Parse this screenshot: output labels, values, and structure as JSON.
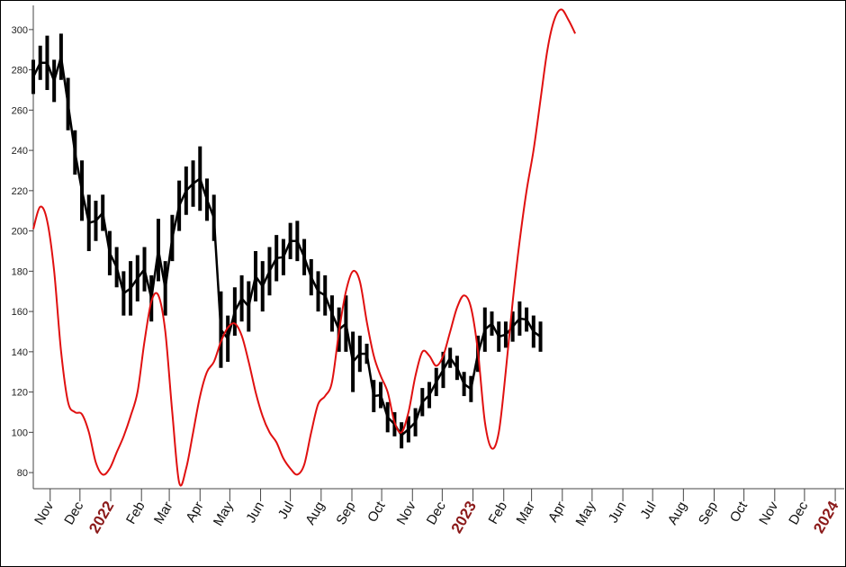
{
  "chart_data": {
    "type": "line",
    "title": "",
    "xlabel": "",
    "ylabel": "",
    "ylim": [
      72,
      312
    ],
    "y_ticks": [
      80,
      100,
      120,
      140,
      160,
      180,
      200,
      220,
      240,
      260,
      280,
      300
    ],
    "x_axis": {
      "start": "2021-10-15",
      "end": "2024-01-10",
      "month_labels": [
        {
          "date": "2021-11-01",
          "label": "Nov"
        },
        {
          "date": "2021-12-01",
          "label": "Dec"
        },
        {
          "date": "2022-01-01",
          "label": "2022",
          "year": true
        },
        {
          "date": "2022-02-01",
          "label": "Feb"
        },
        {
          "date": "2022-03-01",
          "label": "Mar"
        },
        {
          "date": "2022-04-01",
          "label": "Apr"
        },
        {
          "date": "2022-05-01",
          "label": "May"
        },
        {
          "date": "2022-06-01",
          "label": "Jun"
        },
        {
          "date": "2022-07-01",
          "label": "Jul"
        },
        {
          "date": "2022-08-01",
          "label": "Aug"
        },
        {
          "date": "2022-09-01",
          "label": "Sep"
        },
        {
          "date": "2022-10-01",
          "label": "Oct"
        },
        {
          "date": "2022-11-01",
          "label": "Nov"
        },
        {
          "date": "2022-12-01",
          "label": "Dec"
        },
        {
          "date": "2023-01-01",
          "label": "2023",
          "year": true
        },
        {
          "date": "2023-02-01",
          "label": "Feb"
        },
        {
          "date": "2023-03-01",
          "label": "Mar"
        },
        {
          "date": "2023-04-01",
          "label": "Apr"
        },
        {
          "date": "2023-05-01",
          "label": "May"
        },
        {
          "date": "2023-06-01",
          "label": "Jun"
        },
        {
          "date": "2023-07-01",
          "label": "Jul"
        },
        {
          "date": "2023-08-01",
          "label": "Aug"
        },
        {
          "date": "2023-09-01",
          "label": "Sep"
        },
        {
          "date": "2023-10-01",
          "label": "Oct"
        },
        {
          "date": "2023-11-01",
          "label": "Nov"
        },
        {
          "date": "2023-12-01",
          "label": "Dec"
        },
        {
          "date": "2024-01-01",
          "label": "2024",
          "year": true
        }
      ]
    },
    "grid": false,
    "series": [
      {
        "color": "#000000",
        "style": "bar-range",
        "points": [
          [
            "2021-10-15",
            268,
            285
          ],
          [
            "2021-10-22",
            275,
            292
          ],
          [
            "2021-10-29",
            270,
            297
          ],
          [
            "2021-11-05",
            264,
            285
          ],
          [
            "2021-11-12",
            275,
            298
          ],
          [
            "2021-11-19",
            250,
            276
          ],
          [
            "2021-11-26",
            228,
            250
          ],
          [
            "2021-12-03",
            205,
            235
          ],
          [
            "2021-12-10",
            190,
            218
          ],
          [
            "2021-12-17",
            195,
            215
          ],
          [
            "2021-12-24",
            200,
            218
          ],
          [
            "2021-12-31",
            178,
            200
          ],
          [
            "2022-01-07",
            172,
            192
          ],
          [
            "2022-01-14",
            158,
            180
          ],
          [
            "2022-01-21",
            158,
            185
          ],
          [
            "2022-01-28",
            165,
            188
          ],
          [
            "2022-02-04",
            170,
            192
          ],
          [
            "2022-02-11",
            155,
            178
          ],
          [
            "2022-02-18",
            175,
            206
          ],
          [
            "2022-02-25",
            158,
            185
          ],
          [
            "2022-03-04",
            185,
            208
          ],
          [
            "2022-03-11",
            200,
            225
          ],
          [
            "2022-03-18",
            208,
            232
          ],
          [
            "2022-03-25",
            212,
            235
          ],
          [
            "2022-04-01",
            210,
            242
          ],
          [
            "2022-04-08",
            205,
            226
          ],
          [
            "2022-04-15",
            195,
            218
          ],
          [
            "2022-04-22",
            132,
            170
          ],
          [
            "2022-04-29",
            135,
            158
          ],
          [
            "2022-05-06",
            148,
            172
          ],
          [
            "2022-05-13",
            155,
            178
          ],
          [
            "2022-05-20",
            150,
            175
          ],
          [
            "2022-05-27",
            165,
            190
          ],
          [
            "2022-06-03",
            160,
            185
          ],
          [
            "2022-06-10",
            168,
            192
          ],
          [
            "2022-06-17",
            175,
            198
          ],
          [
            "2022-06-24",
            178,
            196
          ],
          [
            "2022-07-01",
            186,
            204
          ],
          [
            "2022-07-08",
            185,
            205
          ],
          [
            "2022-07-15",
            178,
            196
          ],
          [
            "2022-07-22",
            168,
            186
          ],
          [
            "2022-07-29",
            160,
            180
          ],
          [
            "2022-08-05",
            158,
            178
          ],
          [
            "2022-08-12",
            150,
            168
          ],
          [
            "2022-08-19",
            140,
            162
          ],
          [
            "2022-08-26",
            140,
            168
          ],
          [
            "2022-09-02",
            120,
            150
          ],
          [
            "2022-09-09",
            130,
            148
          ],
          [
            "2022-09-16",
            134,
            144
          ],
          [
            "2022-09-23",
            110,
            126
          ],
          [
            "2022-09-30",
            112,
            125
          ],
          [
            "2022-10-07",
            100,
            115
          ],
          [
            "2022-10-14",
            98,
            110
          ],
          [
            "2022-10-21",
            92,
            105
          ],
          [
            "2022-10-28",
            95,
            108
          ],
          [
            "2022-11-04",
            98,
            112
          ],
          [
            "2022-11-11",
            108,
            122
          ],
          [
            "2022-11-18",
            112,
            125
          ],
          [
            "2022-11-25",
            118,
            132
          ],
          [
            "2022-12-02",
            122,
            140
          ],
          [
            "2022-12-09",
            132,
            142
          ],
          [
            "2022-12-16",
            126,
            138
          ],
          [
            "2022-12-23",
            118,
            130
          ],
          [
            "2022-12-30",
            115,
            128
          ],
          [
            "2023-01-06",
            130,
            148
          ],
          [
            "2023-01-13",
            140,
            162
          ],
          [
            "2023-01-20",
            148,
            160
          ],
          [
            "2023-01-27",
            140,
            155
          ],
          [
            "2023-02-03",
            142,
            155
          ],
          [
            "2023-02-10",
            145,
            160
          ],
          [
            "2023-02-17",
            148,
            165
          ],
          [
            "2023-02-24",
            150,
            162
          ],
          [
            "2023-03-03",
            142,
            158
          ],
          [
            "2023-03-10",
            140,
            155
          ]
        ]
      },
      {
        "color": "#e01010",
        "style": "line",
        "points": [
          [
            "2021-10-15",
            201
          ],
          [
            "2021-10-22",
            212
          ],
          [
            "2021-10-29",
            205
          ],
          [
            "2021-11-05",
            180
          ],
          [
            "2021-11-12",
            140
          ],
          [
            "2021-11-19",
            115
          ],
          [
            "2021-11-26",
            110
          ],
          [
            "2021-12-03",
            109
          ],
          [
            "2021-12-10",
            100
          ],
          [
            "2021-12-17",
            85
          ],
          [
            "2021-12-24",
            79
          ],
          [
            "2021-12-31",
            82
          ],
          [
            "2022-01-07",
            90
          ],
          [
            "2022-01-14",
            98
          ],
          [
            "2022-01-21",
            108
          ],
          [
            "2022-01-28",
            120
          ],
          [
            "2022-02-04",
            145
          ],
          [
            "2022-02-11",
            165
          ],
          [
            "2022-02-18",
            168
          ],
          [
            "2022-02-25",
            150
          ],
          [
            "2022-03-04",
            110
          ],
          [
            "2022-03-11",
            75
          ],
          [
            "2022-03-18",
            82
          ],
          [
            "2022-03-25",
            100
          ],
          [
            "2022-04-01",
            118
          ],
          [
            "2022-04-08",
            130
          ],
          [
            "2022-04-15",
            135
          ],
          [
            "2022-04-22",
            145
          ],
          [
            "2022-04-29",
            152
          ],
          [
            "2022-05-06",
            154
          ],
          [
            "2022-05-13",
            148
          ],
          [
            "2022-05-20",
            135
          ],
          [
            "2022-05-27",
            120
          ],
          [
            "2022-06-03",
            108
          ],
          [
            "2022-06-10",
            100
          ],
          [
            "2022-06-17",
            95
          ],
          [
            "2022-06-24",
            87
          ],
          [
            "2022-07-01",
            82
          ],
          [
            "2022-07-08",
            79
          ],
          [
            "2022-07-15",
            84
          ],
          [
            "2022-07-22",
            100
          ],
          [
            "2022-07-29",
            114
          ],
          [
            "2022-08-05",
            118
          ],
          [
            "2022-08-12",
            125
          ],
          [
            "2022-08-19",
            150
          ],
          [
            "2022-08-26",
            170
          ],
          [
            "2022-09-02",
            180
          ],
          [
            "2022-09-09",
            175
          ],
          [
            "2022-09-16",
            155
          ],
          [
            "2022-09-23",
            138
          ],
          [
            "2022-09-30",
            128
          ],
          [
            "2022-10-07",
            120
          ],
          [
            "2022-10-14",
            105
          ],
          [
            "2022-10-21",
            100
          ],
          [
            "2022-10-28",
            110
          ],
          [
            "2022-11-04",
            128
          ],
          [
            "2022-11-11",
            140
          ],
          [
            "2022-11-18",
            138
          ],
          [
            "2022-11-25",
            133
          ],
          [
            "2022-12-02",
            138
          ],
          [
            "2022-12-09",
            150
          ],
          [
            "2022-12-16",
            162
          ],
          [
            "2022-12-23",
            168
          ],
          [
            "2022-12-30",
            162
          ],
          [
            "2023-01-06",
            140
          ],
          [
            "2023-01-13",
            105
          ],
          [
            "2023-01-20",
            92
          ],
          [
            "2023-01-27",
            100
          ],
          [
            "2023-02-03",
            130
          ],
          [
            "2023-02-10",
            165
          ],
          [
            "2023-02-17",
            195
          ],
          [
            "2023-02-24",
            220
          ],
          [
            "2023-03-03",
            240
          ],
          [
            "2023-03-10",
            265
          ],
          [
            "2023-03-17",
            290
          ],
          [
            "2023-03-24",
            305
          ],
          [
            "2023-03-31",
            310
          ],
          [
            "2023-04-07",
            305
          ],
          [
            "2023-04-14",
            298
          ]
        ]
      }
    ]
  }
}
